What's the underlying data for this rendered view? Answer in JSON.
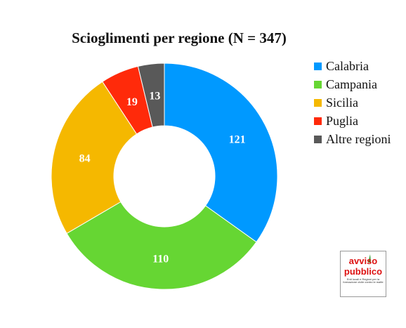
{
  "chart_data": {
    "type": "pie",
    "variant": "donut",
    "title": "Scioglimenti per regione (N = 347)",
    "categories": [
      "Calabria",
      "Campania",
      "Sicilia",
      "Puglia",
      "Altre regioni"
    ],
    "values": [
      121,
      110,
      84,
      19,
      13
    ],
    "colors": [
      "#0099ff",
      "#66d633",
      "#f5b800",
      "#ff2a0a",
      "#595959"
    ],
    "legend_position": "right"
  },
  "logo": {
    "text": "avviso pubblico",
    "tagline": "Enti locali e Regioni per la formazione civile contro le mafie"
  }
}
